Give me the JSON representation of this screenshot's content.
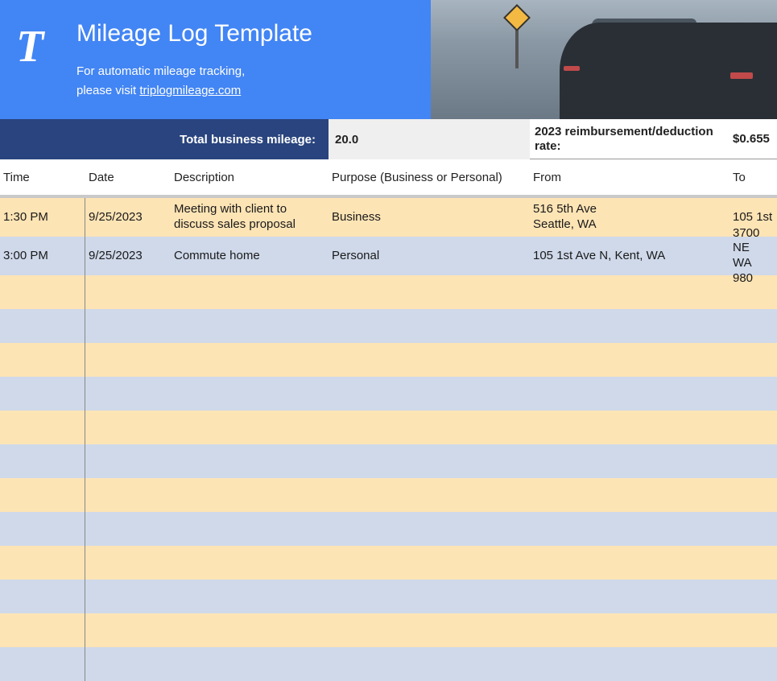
{
  "colors": {
    "banner_blue": "#4285f4",
    "dark_blue": "#29447e",
    "row_odd": "#fde4b5",
    "row_even": "#cfd9ea",
    "totals_bg": "#efefef",
    "text": "#1a1a1a"
  },
  "header": {
    "title": "Mileage Log Template",
    "subtitle1": "For automatic mileage tracking,",
    "subtitle2_prefix": " please visit ",
    "link_text": "triplogmileage.com"
  },
  "totals": {
    "label": "Total business mileage:",
    "value": "20.0",
    "rate_label": "2023 reimbursement/deduction rate:",
    "rate_value": "$0.655"
  },
  "columns": {
    "time": "Time",
    "date": "Date",
    "description": "Description",
    "purpose": "Purpose (Business or Personal)",
    "from": "From",
    "to": "To"
  },
  "rows": [
    {
      "time": "1:30 PM",
      "date": "9/25/2023",
      "description": "Meeting with client to discuss sales proposal",
      "purpose": "Business",
      "from": "516 5th Ave\nSeattle, WA",
      "to": "105 1st"
    },
    {
      "time": "3:00 PM",
      "date": "9/25/2023",
      "description": "Commute home",
      "purpose": "Personal",
      "from": "105 1st Ave N, Kent, WA",
      "to": "3700 NE\nWA 980"
    }
  ],
  "empty_row_count": 12
}
